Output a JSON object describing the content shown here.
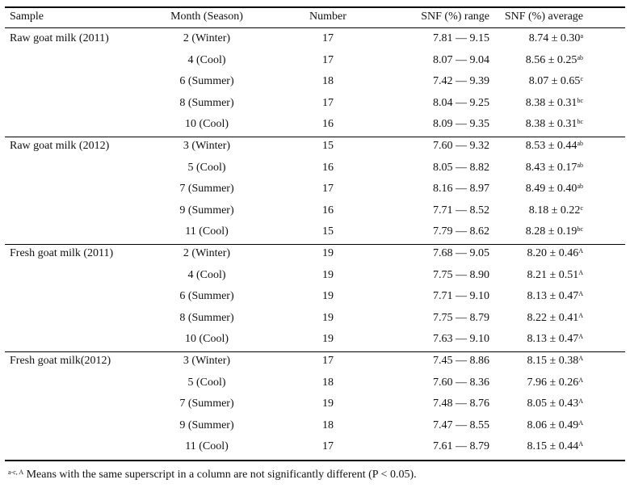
{
  "headers": {
    "sample": "Sample",
    "month": "Month (Season)",
    "number": "Number",
    "range": "SNF (%) range",
    "average": "SNF (%) average"
  },
  "groups": [
    {
      "sample": "Raw goat milk (2011)",
      "rows": [
        {
          "month": "2 (Winter)",
          "number": "17",
          "range": "7.81 — 9.15",
          "avg": "8.74 ± 0.30",
          "sup": "a"
        },
        {
          "month": "4 (Cool)",
          "number": "17",
          "range": "8.07 — 9.04",
          "avg": "8.56 ± 0.25",
          "sup": "ab"
        },
        {
          "month": "6 (Summer)",
          "number": "18",
          "range": "7.42 — 9.39",
          "avg": "8.07 ± 0.65",
          "sup": "c"
        },
        {
          "month": "8 (Summer)",
          "number": "17",
          "range": "8.04 — 9.25",
          "avg": "8.38 ± 0.31",
          "sup": "bc"
        },
        {
          "month": "10 (Cool)",
          "number": "16",
          "range": "8.09 — 9.35",
          "avg": "8.38 ± 0.31",
          "sup": "bc"
        }
      ]
    },
    {
      "sample": "Raw goat milk (2012)",
      "rows": [
        {
          "month": "3 (Winter)",
          "number": "15",
          "range": "7.60 — 9.32",
          "avg": "8.53 ± 0.44",
          "sup": "ab"
        },
        {
          "month": "5 (Cool)",
          "number": "16",
          "range": "8.05 — 8.82",
          "avg": "8.43 ± 0.17",
          "sup": "ab"
        },
        {
          "month": "7 (Summer)",
          "number": "17",
          "range": "8.16 — 8.97",
          "avg": "8.49 ± 0.40",
          "sup": "ab"
        },
        {
          "month": "9 (Summer)",
          "number": "16",
          "range": "7.71 — 8.52",
          "avg": "8.18 ± 0.22",
          "sup": "c"
        },
        {
          "month": "11 (Cool)",
          "number": "15",
          "range": "7.79 — 8.62",
          "avg": "8.28 ± 0.19",
          "sup": "bc"
        }
      ]
    },
    {
      "sample": "Fresh goat milk (2011)",
      "rows": [
        {
          "month": "2 (Winter)",
          "number": "19",
          "range": "7.68 — 9.05",
          "avg": "8.20 ± 0.46",
          "sup": "A"
        },
        {
          "month": "4 (Cool)",
          "number": "19",
          "range": "7.75 — 8.90",
          "avg": "8.21 ± 0.51",
          "sup": "A"
        },
        {
          "month": "6 (Summer)",
          "number": "19",
          "range": "7.71 — 9.10",
          "avg": "8.13 ± 0.47",
          "sup": "A"
        },
        {
          "month": "8 (Summer)",
          "number": "19",
          "range": "7.75 — 8.79",
          "avg": "8.22 ± 0.41",
          "sup": "A"
        },
        {
          "month": "10 (Cool)",
          "number": "19",
          "range": "7.63 — 9.10",
          "avg": "8.13 ± 0.47",
          "sup": "A"
        }
      ]
    },
    {
      "sample": "Fresh goat milk(2012)",
      "rows": [
        {
          "month": "3 (Winter)",
          "number": "17",
          "range": "7.45 — 8.86",
          "avg": "8.15 ± 0.38",
          "sup": "A"
        },
        {
          "month": "5 (Cool)",
          "number": "18",
          "range": "7.60 — 8.36",
          "avg": "7.96 ± 0.26",
          "sup": "A"
        },
        {
          "month": "7 (Summer)",
          "number": "19",
          "range": "7.48 — 8.76",
          "avg": "8.05 ± 0.43",
          "sup": "A"
        },
        {
          "month": "9 (Summer)",
          "number": "18",
          "range": "7.47 — 8.55",
          "avg": "8.06 ± 0.49",
          "sup": "A"
        },
        {
          "month": "11 (Cool)",
          "number": "17",
          "range": "7.61 — 8.79",
          "avg": "8.15 ± 0.44",
          "sup": "A"
        }
      ]
    }
  ],
  "footnote": {
    "sup": "a-c, A",
    "text": " Means with the same superscript in a column are not significantly different (P < 0.05)."
  }
}
